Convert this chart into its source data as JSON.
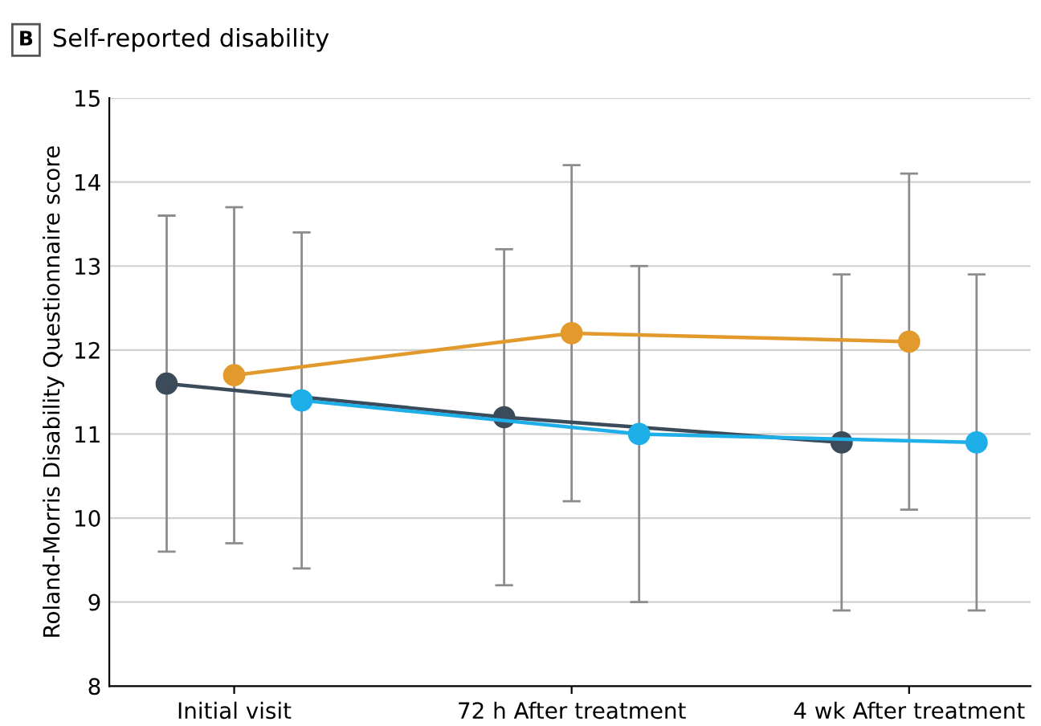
{
  "chart_data": {
    "type": "line",
    "title": "Self-reported disability",
    "annotations": [
      "B"
    ],
    "ylabel": "Roland-Morris Disability Questionnaire score",
    "categories": [
      "Initial visit",
      "72 h After treatment",
      "4 wk After treatment"
    ],
    "ylim": [
      8,
      15
    ],
    "yticks": [
      8,
      9,
      10,
      11,
      12,
      13,
      14,
      15
    ],
    "grid": "y",
    "marker": "circle",
    "line_style": "solid",
    "legend": false,
    "series": [
      {
        "color": "#3b4b5a",
        "values": [
          11.6,
          11.2,
          10.9
        ],
        "errors": [
          2.0,
          2.0,
          2.0
        ]
      },
      {
        "color": "#e39a2d",
        "values": [
          11.7,
          12.2,
          12.1
        ],
        "errors": [
          2.0,
          2.0,
          2.0
        ]
      },
      {
        "color": "#1eaee8",
        "values": [
          11.4,
          11.0,
          10.9
        ],
        "errors": [
          2.0,
          2.0,
          2.0
        ]
      }
    ]
  }
}
